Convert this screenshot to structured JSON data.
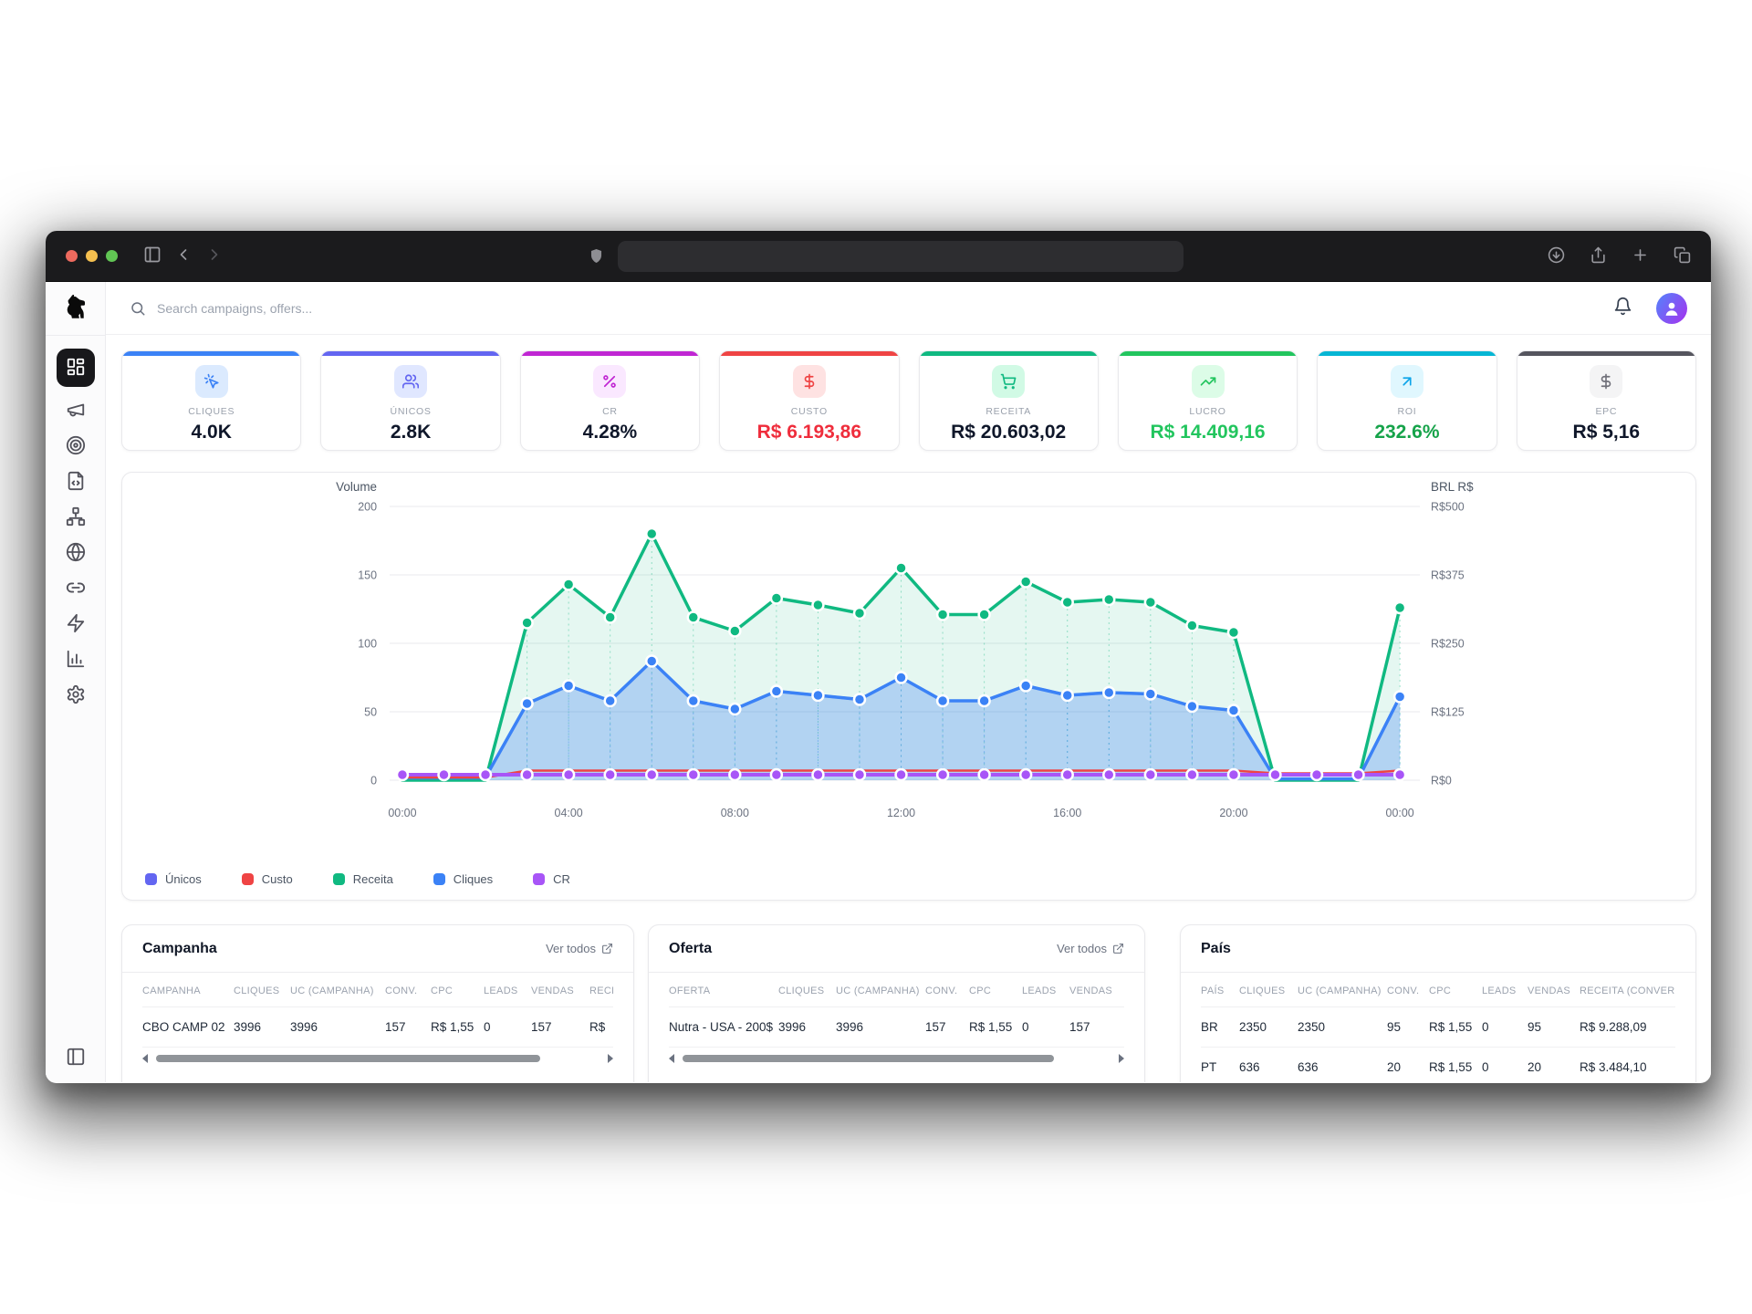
{
  "browser": {
    "url": ""
  },
  "topbar": {
    "search_placeholder": "Search campaigns, offers..."
  },
  "sidebar": {
    "icons": [
      "dashboard",
      "megaphone",
      "target",
      "file-code",
      "sitemap",
      "globe",
      "link",
      "zap",
      "bar-chart",
      "settings"
    ],
    "active": "dashboard"
  },
  "stats": {
    "items": [
      {
        "label": "CLIQUES",
        "value": "4.0K",
        "accent": "#3b82f6",
        "tile_bg": "#dbeafe",
        "icon": "cursor-click",
        "icon_color": "#3b82f6",
        "value_color": "#0f172a"
      },
      {
        "label": "ÚNICOS",
        "value": "2.8K",
        "accent": "#6366f1",
        "tile_bg": "#e0e7ff",
        "icon": "users",
        "icon_color": "#6366f1",
        "value_color": "#0f172a"
      },
      {
        "label": "CR",
        "value": "4.28%",
        "accent": "#c026d3",
        "tile_bg": "#fae8ff",
        "icon": "percent",
        "icon_color": "#c026d3",
        "value_color": "#0f172a"
      },
      {
        "label": "CUSTO",
        "value": "R$ 6.193,86",
        "accent": "#ef4444",
        "tile_bg": "#fee2e2",
        "icon": "dollar",
        "icon_color": "#ef4444",
        "value_color": "#ef2d3c"
      },
      {
        "label": "RECEITA",
        "value": "R$ 20.603,02",
        "accent": "#10b981",
        "tile_bg": "#d1fae5",
        "icon": "cart",
        "icon_color": "#10b981",
        "value_color": "#0f172a"
      },
      {
        "label": "LUCRO",
        "value": "R$ 14.409,16",
        "accent": "#22c55e",
        "tile_bg": "#dcfce7",
        "icon": "trending-up",
        "icon_color": "#22c55e",
        "value_color": "#22c55e"
      },
      {
        "label": "ROI",
        "value": "232.6%",
        "accent": "#06b6d4",
        "tile_bg": "#e0f7fe",
        "icon": "arrow-up-right",
        "icon_color": "#0ea5e9",
        "value_color": "#16a34a"
      },
      {
        "label": "EPC",
        "value": "R$ 5,16",
        "accent": "#55555e",
        "tile_bg": "#f4f4f5",
        "icon": "dollar",
        "icon_color": "#71717a",
        "value_color": "#0f172a"
      }
    ]
  },
  "chart_data": {
    "type": "area",
    "x_tick_labels": [
      "00:00",
      "04:00",
      "08:00",
      "12:00",
      "16:00",
      "20:00",
      "00:00"
    ],
    "x_tick_positions": [
      0,
      4,
      8,
      12,
      16,
      20,
      24
    ],
    "left_axis": {
      "title": "Volume",
      "ticks": [
        0,
        50,
        100,
        150,
        200
      ],
      "max": 200
    },
    "right_axis": {
      "title": "BRL R$",
      "ticks": [
        "R$0",
        "R$125",
        "R$250",
        "R$375",
        "R$500"
      ]
    },
    "grid": true,
    "legend_position": "bottom-left",
    "series": [
      {
        "name": "Receita",
        "color": "#10b981",
        "fill": "rgba(16,185,129,0.11)",
        "width": 3.5,
        "dots": true,
        "drop": true,
        "values": [
          0,
          0,
          0,
          115,
          143,
          119,
          180,
          119,
          109,
          133,
          128,
          122,
          155,
          121,
          121,
          145,
          130,
          132,
          130,
          113,
          108,
          0,
          0,
          0,
          126
        ]
      },
      {
        "name": "Únicos",
        "color": "#6366f1",
        "fill": null,
        "width": 3,
        "dots": false,
        "drop": false,
        "values": [
          2,
          2,
          2,
          56,
          69,
          58,
          87,
          58,
          52,
          65,
          62,
          59,
          75,
          58,
          58,
          69,
          62,
          64,
          63,
          54,
          51,
          1,
          1,
          1,
          61
        ]
      },
      {
        "name": "Cliques",
        "color": "#3b82f6",
        "fill": "rgba(59,130,246,0.30)",
        "width": 3.5,
        "dots": true,
        "drop": true,
        "values": [
          2,
          2,
          2,
          56,
          69,
          58,
          87,
          58,
          52,
          65,
          62,
          59,
          75,
          58,
          58,
          69,
          62,
          64,
          63,
          54,
          51,
          1,
          1,
          1,
          61
        ]
      },
      {
        "name": "Custo",
        "color": "#ef4444",
        "fill": null,
        "width": 2.5,
        "dots": false,
        "drop": false,
        "values": [
          2,
          2,
          2,
          7,
          7,
          7,
          7,
          7,
          7,
          7,
          7,
          7,
          7,
          7,
          7,
          7,
          7,
          7,
          7,
          7,
          7,
          5,
          5,
          5,
          7
        ]
      },
      {
        "name": "CR",
        "color": "#a855f7",
        "fill": null,
        "width": 4,
        "dots": "all",
        "drop": false,
        "values": [
          4,
          4,
          4,
          4,
          4,
          4,
          4,
          4,
          4,
          4,
          4,
          4,
          4,
          4,
          4,
          4,
          4,
          4,
          4,
          4,
          4,
          4,
          4,
          4,
          4
        ]
      }
    ]
  },
  "legend": [
    {
      "label": "Únicos",
      "color": "#6366f1"
    },
    {
      "label": "Custo",
      "color": "#ef4444"
    },
    {
      "label": "Receita",
      "color": "#10b981"
    },
    {
      "label": "Cliques",
      "color": "#3b82f6"
    },
    {
      "label": "CR",
      "color": "#a855f7"
    }
  ],
  "tables": {
    "campanha": {
      "title": "Campanha",
      "link_label": "Ver todos",
      "scrollbar": true,
      "headers": [
        "CAMPANHA",
        "CLIQUES",
        "UC (CAMPANHA)",
        "CONV.",
        "CPC",
        "LEADS",
        "VENDAS",
        "RECEITA"
      ],
      "rows": [
        [
          "CBO CAMP 02",
          "3996",
          "3996",
          "157",
          "R$ 1,55",
          "0",
          "157",
          "R$"
        ]
      ]
    },
    "oferta": {
      "title": "Oferta",
      "link_label": "Ver todos",
      "scrollbar": true,
      "headers": [
        "OFERTA",
        "CLIQUES",
        "UC (CAMPANHA)",
        "CONV.",
        "CPC",
        "LEADS",
        "VENDAS"
      ],
      "rows": [
        [
          "Nutra - USA - 200$",
          "3996",
          "3996",
          "157",
          "R$ 1,55",
          "0",
          "157"
        ]
      ]
    },
    "pais": {
      "title": "País",
      "link_label": null,
      "scrollbar": false,
      "headers": [
        "PAÍS",
        "CLIQUES",
        "UC (CAMPANHA)",
        "CONV.",
        "CPC",
        "LEADS",
        "VENDAS",
        "RECEITA (CONVERSÃO)"
      ],
      "rows": [
        [
          "BR",
          "2350",
          "2350",
          "95",
          "R$ 1,55",
          "0",
          "95",
          "R$ 9.288,09"
        ],
        [
          "PT",
          "636",
          "636",
          "20",
          "R$ 1,55",
          "0",
          "20",
          "R$ 3.484,10"
        ]
      ]
    }
  }
}
